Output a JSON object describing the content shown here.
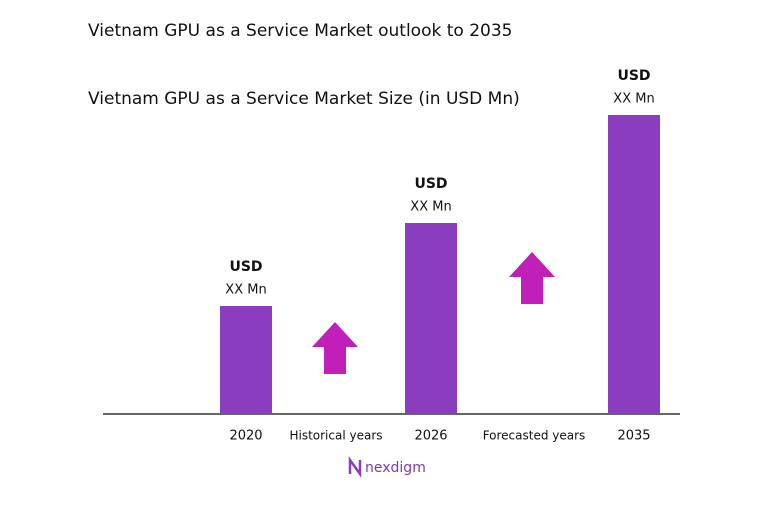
{
  "chart_data": {
    "type": "bar",
    "title": "Vietnam GPU as a Service Market outlook to 2035",
    "subtitle": "Vietnam GPU as a Service Market Size (in USD Mn)",
    "categories": [
      "2020",
      "2026",
      "2035"
    ],
    "values": [
      108,
      191,
      299
    ],
    "bar_labels": [
      {
        "unit": "USD",
        "amount": "XX Mn"
      },
      {
        "unit": "USD",
        "amount": "XX Mn"
      },
      {
        "unit": "USD",
        "amount": "XX Mn"
      }
    ],
    "period_labels": [
      "Historical years",
      "Forecasted years"
    ],
    "color": "#8a3ebf",
    "arrow_color": "#c01fb8",
    "ylim": [
      0,
      310
    ],
    "brand": "nexdigm"
  }
}
